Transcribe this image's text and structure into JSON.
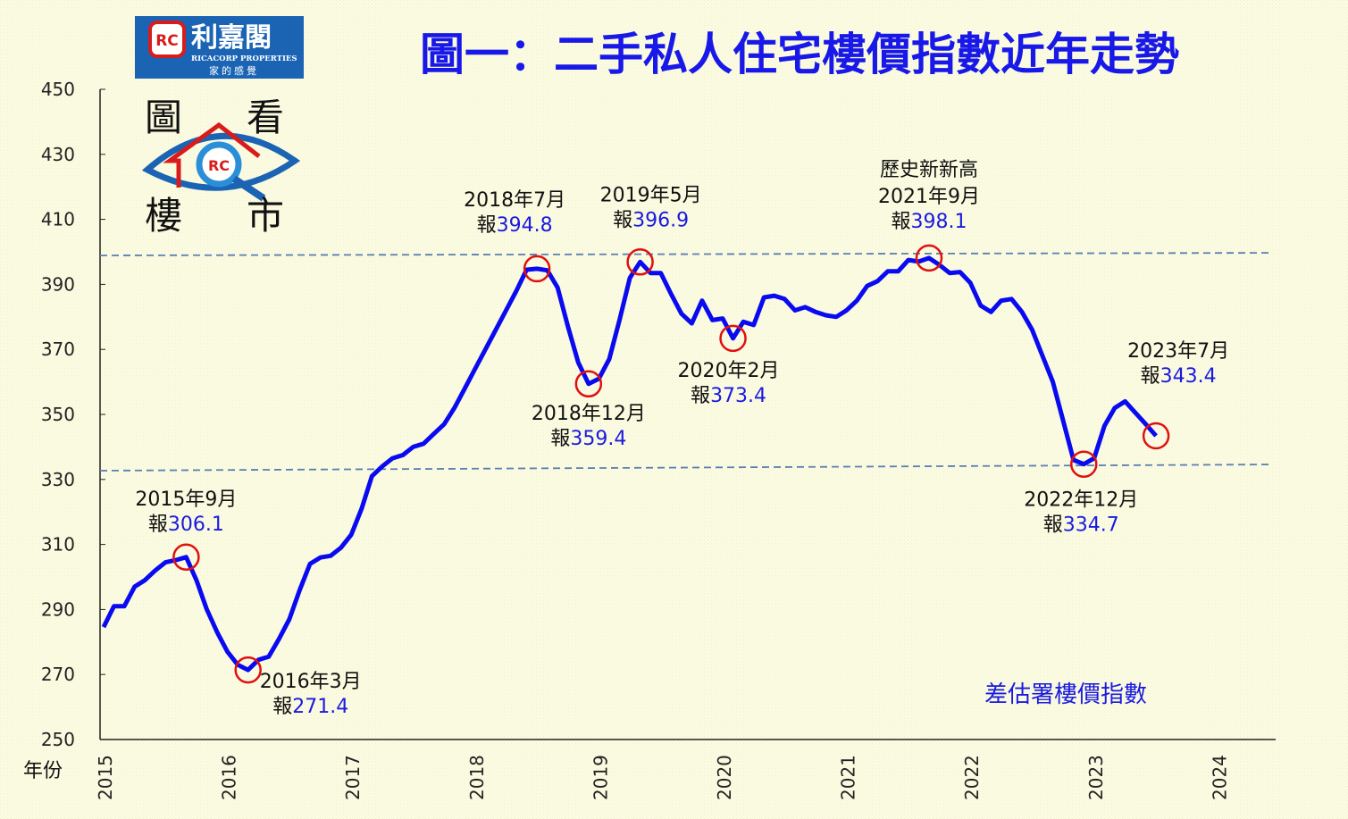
{
  "logo": {
    "brand_cn": "利嘉閣",
    "brand_en": "RICACORP PROPERTIES",
    "slogan": "家的感覺",
    "badge": "RC",
    "column_chars": [
      "圖",
      "看",
      "樓",
      "市"
    ],
    "brand_color": "#1b64b4"
  },
  "chart_data": {
    "type": "line",
    "title": "圖一：二手私人住宅樓價指數近年走勢",
    "xlabel": "年份",
    "ylabel": "",
    "ylim": [
      250,
      450
    ],
    "yticks": [
      250,
      270,
      290,
      310,
      330,
      350,
      370,
      390,
      410,
      430,
      450
    ],
    "xticks": [
      "2015",
      "2016",
      "2017",
      "2018",
      "2019",
      "2020",
      "2021",
      "2022",
      "2023",
      "2024"
    ],
    "x_start": "2015-01",
    "x_unit": "month",
    "grid": false,
    "legend": {
      "label": "差估署樓價指數",
      "placement": "bottom-right"
    },
    "series": [
      {
        "name": "差估署樓價指數",
        "color": "#0a0af0",
        "values": [
          284.6,
          291,
          291,
          297,
          299,
          302,
          304.5,
          305.2,
          306.1,
          299,
          290,
          283,
          277,
          273,
          271.4,
          274.5,
          275.5,
          281,
          287,
          296,
          304,
          306,
          306.5,
          309,
          313,
          321,
          331,
          334,
          336.5,
          337.5,
          340,
          341,
          344,
          347,
          352,
          358,
          364,
          370,
          376,
          382,
          388,
          394.5,
          394.8,
          394.3,
          389,
          377,
          366,
          359.4,
          361,
          367,
          379,
          392,
          396.9,
          393.5,
          393.5,
          387,
          381,
          378,
          385,
          379,
          379.5,
          373.4,
          378.5,
          377.5,
          386,
          386.5,
          385.5,
          382,
          383,
          381.5,
          380.5,
          380,
          382,
          385,
          389.5,
          391,
          394,
          394,
          397.5,
          397,
          398.1,
          396,
          393.5,
          393.8,
          390.5,
          383.5,
          381.5,
          385,
          385.5,
          381.5,
          376,
          368,
          360,
          348,
          336,
          334.7,
          336.5,
          346.5,
          352,
          354,
          350.5,
          347,
          343.4
        ]
      }
    ],
    "reference_lines": [
      {
        "style": "dashed",
        "from": 398.9,
        "to": 399.7
      },
      {
        "style": "dashed",
        "from": 332.7,
        "to": 334.6
      }
    ],
    "annotations": [
      {
        "index": 8,
        "extra": "",
        "date": "2015年9月",
        "prefix": "報",
        "value": "306.1"
      },
      {
        "index": 14,
        "extra": "",
        "date": "2016年3月",
        "prefix": "報",
        "value": "271.4"
      },
      {
        "index": 42,
        "extra": "",
        "date": "2018年7月",
        "prefix": "報",
        "value": "394.8"
      },
      {
        "index": 47,
        "extra": "",
        "date": "2018年12月",
        "prefix": "報",
        "value": "359.4"
      },
      {
        "index": 52,
        "extra": "",
        "date": "2019年5月",
        "prefix": "報",
        "value": "396.9"
      },
      {
        "index": 61,
        "extra": "",
        "date": "2020年2月",
        "prefix": "報",
        "value": "373.4"
      },
      {
        "index": 80,
        "extra": "歷史新新高",
        "date": "2021年9月",
        "prefix": "報",
        "value": "398.1"
      },
      {
        "index": 95,
        "extra": "",
        "date": "2022年12月",
        "prefix": "報",
        "value": "334.7"
      },
      {
        "index": 102,
        "extra": "",
        "date": "2023年7月",
        "prefix": "報",
        "value": "343.4"
      }
    ]
  }
}
